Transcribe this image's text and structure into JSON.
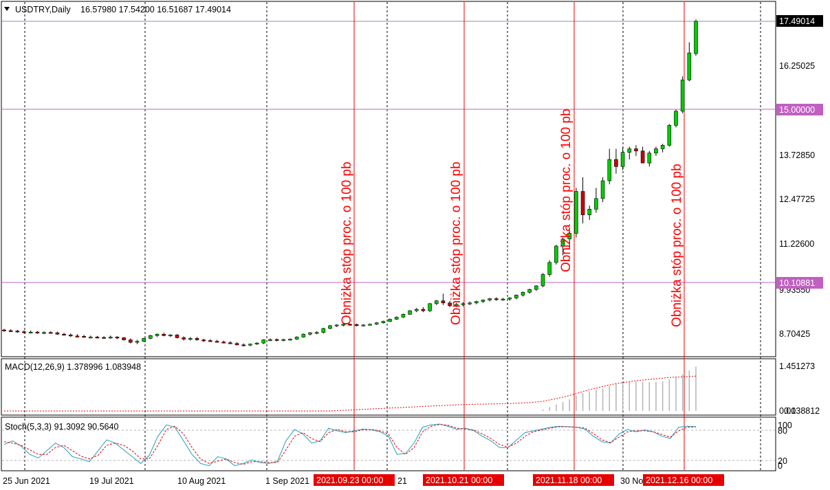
{
  "main_header": {
    "symbol": "USDTRY,Daily",
    "ohlc": "16.57980 17.54200 16.51687 17.49014"
  },
  "macd_header": "MACD(12,26,9) 1.378996 1.083948",
  "stoch_header": "Stoch(5,3,3) 91.3092 90.5640",
  "price_axis": [
    "16.25025",
    "13.72850",
    "12.47725",
    "11.22600",
    "9.93550",
    "8.70425"
  ],
  "price_badges": [
    {
      "label": "17.49014",
      "bg": "#000000",
      "fg": "#ffffff"
    },
    {
      "label": "15.00000",
      "bg": "#c060c0",
      "fg": "#ffffff"
    },
    {
      "label": "10.10881",
      "bg": "#c060c0",
      "fg": "#ffffff"
    }
  ],
  "macd_axis": [
    "1.451273",
    "0.00",
    "0.138812"
  ],
  "stoch_axis": [
    "100",
    "80",
    "20",
    "0"
  ],
  "time_axis": [
    "25 Jun 2021",
    "19 Jul 2021",
    "10 Aug 2021",
    "1 Sep 2021",
    "21",
    "30 No"
  ],
  "event_labels": [
    "2021.09.23 00:00",
    "2021.10.21 00:00",
    "2021.11.18 00:00",
    "2021.12.16 00:00"
  ],
  "annotation_text": "Obniżka stóp proc. o 100 pb",
  "colors": {
    "bull": "#00cc00",
    "bear": "#cc0000",
    "event_line": "#e60000",
    "level_line": "#c060c0",
    "grid": "#000000",
    "stoch_main": "#20a0c0",
    "stoch_signal": "#e60000",
    "macd_hist": "#b4b4b4",
    "macd_signal": "#e60000"
  },
  "chart_data": {
    "type": "candlestick",
    "symbol": "USDTRY",
    "timeframe": "Daily",
    "ylim": [
      8.2,
      17.8
    ],
    "horizontal_levels": [
      17.49014,
      15.0,
      10.10881
    ],
    "events": [
      "2021.09.23",
      "2021.10.21",
      "2021.11.18",
      "2021.12.16"
    ],
    "candles": [
      [
        8.8,
        8.83,
        8.75,
        8.78
      ],
      [
        8.78,
        8.82,
        8.74,
        8.77
      ],
      [
        8.77,
        8.8,
        8.72,
        8.75
      ],
      [
        8.75,
        8.79,
        8.7,
        8.73
      ],
      [
        8.73,
        8.78,
        8.7,
        8.74
      ],
      [
        8.74,
        8.77,
        8.69,
        8.72
      ],
      [
        8.72,
        8.76,
        8.68,
        8.73
      ],
      [
        8.73,
        8.76,
        8.7,
        8.72
      ],
      [
        8.72,
        8.75,
        8.66,
        8.68
      ],
      [
        8.68,
        8.72,
        8.64,
        8.66
      ],
      [
        8.66,
        8.7,
        8.6,
        8.63
      ],
      [
        8.63,
        8.68,
        8.58,
        8.62
      ],
      [
        8.62,
        8.66,
        8.58,
        8.6
      ],
      [
        8.6,
        8.64,
        8.56,
        8.6
      ],
      [
        8.6,
        8.63,
        8.56,
        8.59
      ],
      [
        8.59,
        8.62,
        8.55,
        8.57
      ],
      [
        8.57,
        8.64,
        8.55,
        8.6
      ],
      [
        8.6,
        8.62,
        8.54,
        8.58
      ],
      [
        8.58,
        8.6,
        8.5,
        8.52
      ],
      [
        8.52,
        8.56,
        8.42,
        8.45
      ],
      [
        8.45,
        8.52,
        8.4,
        8.48
      ],
      [
        8.48,
        8.58,
        8.46,
        8.56
      ],
      [
        8.56,
        8.66,
        8.54,
        8.64
      ],
      [
        8.64,
        8.7,
        8.6,
        8.68
      ],
      [
        8.68,
        8.72,
        8.62,
        8.64
      ],
      [
        8.64,
        8.68,
        8.6,
        8.66
      ],
      [
        8.66,
        8.68,
        8.56,
        8.58
      ],
      [
        8.58,
        8.62,
        8.5,
        8.54
      ],
      [
        8.54,
        8.6,
        8.5,
        8.56
      ],
      [
        8.56,
        8.6,
        8.5,
        8.52
      ],
      [
        8.52,
        8.55,
        8.46,
        8.5
      ],
      [
        8.5,
        8.54,
        8.46,
        8.48
      ],
      [
        8.48,
        8.52,
        8.44,
        8.46
      ],
      [
        8.46,
        8.5,
        8.42,
        8.44
      ],
      [
        8.44,
        8.48,
        8.4,
        8.42
      ],
      [
        8.42,
        8.45,
        8.36,
        8.38
      ],
      [
        8.38,
        8.42,
        8.34,
        8.37
      ],
      [
        8.37,
        8.42,
        8.34,
        8.4
      ],
      [
        8.4,
        8.45,
        8.38,
        8.43
      ],
      [
        8.43,
        8.54,
        8.4,
        8.52
      ],
      [
        8.52,
        8.56,
        8.48,
        8.53
      ],
      [
        8.53,
        8.56,
        8.48,
        8.52
      ],
      [
        8.52,
        8.55,
        8.48,
        8.53
      ],
      [
        8.53,
        8.56,
        8.5,
        8.54
      ],
      [
        8.54,
        8.62,
        8.52,
        8.6
      ],
      [
        8.6,
        8.7,
        8.58,
        8.68
      ],
      [
        8.68,
        8.74,
        8.64,
        8.72
      ],
      [
        8.72,
        8.76,
        8.68,
        8.73
      ],
      [
        8.73,
        8.86,
        8.7,
        8.84
      ],
      [
        8.84,
        8.94,
        8.82,
        8.92
      ],
      [
        8.92,
        8.96,
        8.88,
        8.94
      ],
      [
        8.94,
        8.98,
        8.9,
        8.96
      ],
      [
        8.96,
        8.98,
        8.92,
        8.95
      ],
      [
        8.95,
        8.98,
        8.9,
        8.93
      ],
      [
        8.93,
        8.96,
        8.9,
        8.94
      ],
      [
        8.94,
        8.98,
        8.92,
        8.96
      ],
      [
        8.96,
        9.02,
        8.94,
        9.0
      ],
      [
        9.0,
        9.06,
        8.98,
        9.04
      ],
      [
        9.04,
        9.12,
        9.02,
        9.1
      ],
      [
        9.1,
        9.18,
        9.08,
        9.16
      ],
      [
        9.16,
        9.26,
        9.14,
        9.24
      ],
      [
        9.24,
        9.36,
        9.22,
        9.34
      ],
      [
        9.34,
        9.42,
        9.3,
        9.38
      ],
      [
        9.38,
        9.44,
        9.3,
        9.34
      ],
      [
        9.34,
        9.56,
        9.3,
        9.54
      ],
      [
        9.54,
        9.64,
        9.5,
        9.62
      ],
      [
        9.62,
        9.82,
        9.5,
        9.56
      ],
      [
        9.56,
        9.62,
        9.44,
        9.48
      ],
      [
        9.48,
        9.56,
        9.44,
        9.52
      ],
      [
        9.52,
        9.58,
        9.46,
        9.54
      ],
      [
        9.54,
        9.6,
        9.5,
        9.56
      ],
      [
        9.56,
        9.62,
        9.52,
        9.6
      ],
      [
        9.6,
        9.66,
        9.56,
        9.64
      ],
      [
        9.64,
        9.7,
        9.6,
        9.68
      ],
      [
        9.68,
        9.72,
        9.62,
        9.66
      ],
      [
        9.66,
        9.7,
        9.62,
        9.67
      ],
      [
        9.67,
        9.72,
        9.62,
        9.7
      ],
      [
        9.7,
        9.8,
        9.66,
        9.78
      ],
      [
        9.78,
        9.88,
        9.74,
        9.86
      ],
      [
        9.86,
        9.96,
        9.82,
        9.94
      ],
      [
        9.94,
        10.06,
        9.9,
        10.04
      ],
      [
        10.04,
        10.4,
        10.0,
        10.36
      ],
      [
        10.36,
        10.76,
        10.3,
        10.7
      ],
      [
        10.7,
        11.2,
        10.64,
        11.16
      ],
      [
        11.16,
        11.4,
        10.9,
        11.36
      ],
      [
        11.36,
        11.6,
        11.1,
        11.52
      ],
      [
        11.52,
        12.8,
        11.4,
        12.7
      ],
      [
        12.7,
        13.1,
        11.8,
        12.04
      ],
      [
        12.04,
        12.3,
        11.9,
        12.2
      ],
      [
        12.2,
        12.8,
        12.1,
        12.5
      ],
      [
        12.5,
        13.1,
        12.4,
        13.0
      ],
      [
        13.0,
        13.9,
        12.9,
        13.6
      ],
      [
        13.6,
        13.9,
        13.2,
        13.4
      ],
      [
        13.4,
        13.94,
        13.3,
        13.8
      ],
      [
        13.8,
        13.96,
        13.6,
        13.9
      ],
      [
        13.9,
        14.0,
        13.7,
        13.84
      ],
      [
        13.84,
        13.96,
        13.5,
        13.5
      ],
      [
        13.5,
        13.84,
        13.4,
        13.78
      ],
      [
        13.78,
        13.96,
        13.7,
        13.9
      ],
      [
        13.9,
        14.04,
        13.8,
        14.0
      ],
      [
        14.0,
        14.6,
        13.96,
        14.56
      ],
      [
        14.56,
        15.0,
        14.5,
        14.96
      ],
      [
        14.96,
        15.94,
        14.9,
        15.84
      ],
      [
        15.84,
        16.9,
        15.8,
        16.6
      ],
      [
        16.5798,
        17.542,
        16.51687,
        17.49014
      ]
    ],
    "macd_hist": [
      0.0,
      0.0,
      0.0,
      0.0,
      0.0,
      0.0,
      0.0,
      0.0,
      0.0,
      0.0,
      0.0,
      0.0,
      0.0,
      0.0,
      0.0,
      0.0,
      0.0,
      0.0,
      0.0,
      0.0,
      0.0,
      0.0,
      0.0,
      0.0,
      0.0,
      0.0,
      0.0,
      0.0,
      0.0,
      0.0,
      0.0,
      0.0,
      0.0,
      0.0,
      0.0,
      0.0,
      0.0,
      0.0,
      0.0,
      0.0,
      0.0,
      0.0,
      0.0,
      0.0,
      0.0,
      0.0,
      0.0,
      0.0,
      0.0,
      0.0,
      0.0,
      0.0,
      0.0,
      0.0,
      0.0,
      0.0,
      0.0,
      0.0,
      0.0,
      0.0,
      0.0,
      0.0,
      0.0,
      0.0,
      0.0,
      0.0,
      0.0,
      0.0,
      0.0,
      0.0,
      0.0,
      0.0,
      0.0,
      0.0,
      0.0,
      0.0,
      0.0,
      0.0,
      0.0,
      0.0,
      0.0,
      0.05,
      0.12,
      0.2,
      0.28,
      0.36,
      0.48,
      0.56,
      0.6,
      0.65,
      0.7,
      0.78,
      0.84,
      0.88,
      0.9,
      0.92,
      0.9,
      0.9,
      0.9,
      0.92,
      0.98,
      1.04,
      1.14,
      1.26,
      1.378996
    ],
    "macd_signal": [
      0.0,
      0.0,
      0.0,
      0.0,
      0.0,
      0.0,
      0.0,
      0.0,
      0.0,
      0.0,
      0.0,
      0.0,
      0.0,
      0.0,
      0.0,
      0.0,
      0.0,
      0.0,
      0.0,
      0.0,
      0.0,
      0.0,
      0.0,
      0.0,
      0.0,
      0.0,
      0.0,
      0.0,
      0.0,
      0.0,
      0.0,
      0.0,
      0.0,
      0.0,
      0.0,
      0.0,
      0.0,
      0.0,
      0.0,
      0.0,
      0.0,
      0.0,
      0.0,
      0.0,
      0.0,
      0.0,
      0.0,
      0.0,
      0.0,
      0.0,
      0.01,
      0.02,
      0.03,
      0.04,
      0.05,
      0.06,
      0.07,
      0.08,
      0.09,
      0.1,
      0.11,
      0.12,
      0.13,
      0.14,
      0.15,
      0.16,
      0.17,
      0.18,
      0.19,
      0.2,
      0.2,
      0.21,
      0.21,
      0.22,
      0.22,
      0.23,
      0.23,
      0.24,
      0.25,
      0.26,
      0.28,
      0.3,
      0.34,
      0.38,
      0.43,
      0.48,
      0.54,
      0.6,
      0.66,
      0.71,
      0.76,
      0.81,
      0.85,
      0.88,
      0.91,
      0.94,
      0.96,
      0.98,
      1.0,
      1.02,
      1.04,
      1.05,
      1.06,
      1.07,
      1.083948
    ],
    "stoch_main": [
      52,
      60,
      48,
      30,
      22,
      38,
      55,
      45,
      25,
      20,
      14,
      38,
      62,
      55,
      40,
      25,
      10,
      28,
      70,
      95,
      90,
      60,
      30,
      10,
      5,
      25,
      20,
      5,
      10,
      18,
      12,
      10,
      15,
      60,
      85,
      75,
      55,
      60,
      88,
      82,
      78,
      82,
      86,
      84,
      80,
      70,
      30,
      32,
      55,
      90,
      95,
      97,
      92,
      85,
      88,
      82,
      70,
      60,
      45,
      45,
      62,
      78,
      82,
      86,
      90,
      92,
      91,
      90,
      86,
      70,
      58,
      55,
      75,
      85,
      80,
      84,
      80,
      70,
      65,
      90,
      92,
      91.3092
    ],
    "stoch_signal": [
      58,
      55,
      50,
      40,
      30,
      30,
      45,
      50,
      38,
      26,
      20,
      28,
      50,
      55,
      50,
      38,
      20,
      20,
      50,
      85,
      92,
      75,
      45,
      20,
      10,
      15,
      20,
      12,
      8,
      14,
      14,
      12,
      12,
      40,
      70,
      78,
      65,
      58,
      78,
      85,
      80,
      80,
      84,
      85,
      82,
      75,
      45,
      30,
      45,
      80,
      92,
      96,
      94,
      88,
      86,
      84,
      75,
      65,
      52,
      46,
      55,
      70,
      80,
      84,
      88,
      91,
      91,
      90,
      88,
      76,
      62,
      56,
      68,
      80,
      82,
      82,
      80,
      74,
      68,
      82,
      90,
      90.564
    ]
  }
}
